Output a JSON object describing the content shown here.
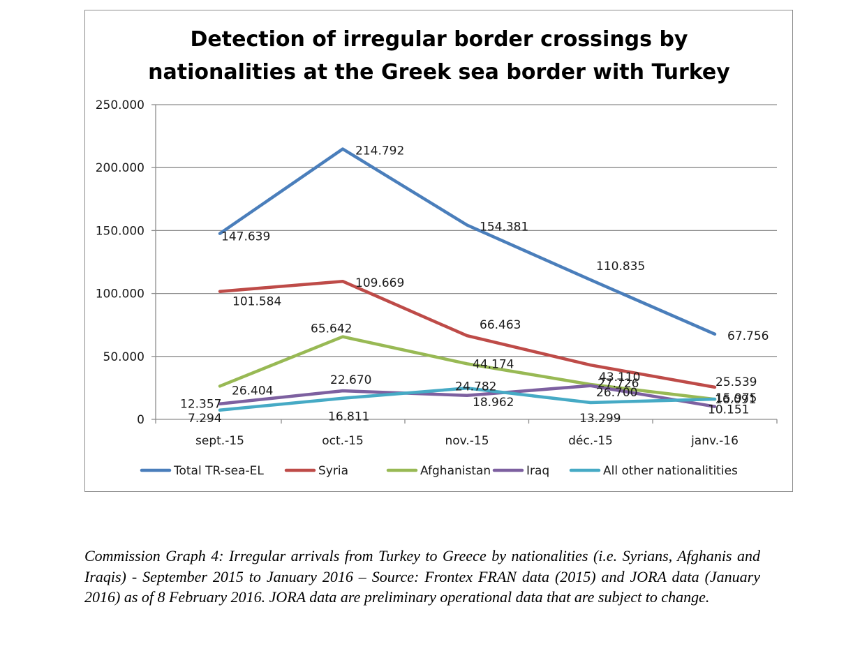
{
  "chart_data": {
    "type": "line",
    "title": "Detection of irregular border crossings by nationalities at the Greek sea border with Turkey",
    "title_lines": [
      "Detection of irregular border crossings by",
      "nationalities at the Greek sea border with Turkey"
    ],
    "categories": [
      "sept.-15",
      "oct.-15",
      "nov.-15",
      "déc.-15",
      "janv.-16"
    ],
    "ylim": [
      0,
      250000
    ],
    "yticks": [
      0,
      50000,
      100000,
      150000,
      200000,
      250000
    ],
    "ytick_labels": [
      "0",
      "50.000",
      "100.000",
      "150.000",
      "200.000",
      "250.000"
    ],
    "grid": true,
    "legend_position": "bottom",
    "series": [
      {
        "name": "Total TR-sea-EL",
        "color": "#4a7ebb",
        "values": [
          147639,
          214792,
          154381,
          110835,
          67756
        ],
        "labels": [
          "147.639",
          "214.792",
          "154.381",
          "110.835",
          "67.756"
        ]
      },
      {
        "name": "Syria",
        "color": "#be4b48",
        "values": [
          101584,
          109669,
          66463,
          43110,
          25539
        ],
        "labels": [
          "101.584",
          "109.669",
          "66.463",
          "43.110",
          "25.539"
        ]
      },
      {
        "name": "Afghanistan",
        "color": "#98b954",
        "values": [
          26404,
          65642,
          44174,
          27726,
          15975
        ],
        "labels": [
          "26.404",
          "65.642",
          "44.174",
          "27.726",
          "15.975"
        ]
      },
      {
        "name": "Iraq",
        "color": "#7d60a0",
        "values": [
          12357,
          22670,
          18962,
          26700,
          10151
        ],
        "labels": [
          "12.357",
          "22.670",
          "18.962",
          "26.700",
          "10.151"
        ]
      },
      {
        "name": "All other nationalitities",
        "color": "#46aac5",
        "values": [
          7294,
          16811,
          24782,
          13299,
          16091
        ],
        "labels": [
          "7.294",
          "16.811",
          "24.782",
          "13.299",
          "16.091"
        ]
      }
    ]
  },
  "caption": "Commission Graph 4: Irregular arrivals from Turkey to Greece by nationalities (i.e. Syrians, Afghanis and Iraqis) - September 2015 to January 2016 – Source: Frontex FRAN data (2015) and JORA data (January 2016) as of 8 February 2016. JORA data are preliminary operational data that are subject to change."
}
